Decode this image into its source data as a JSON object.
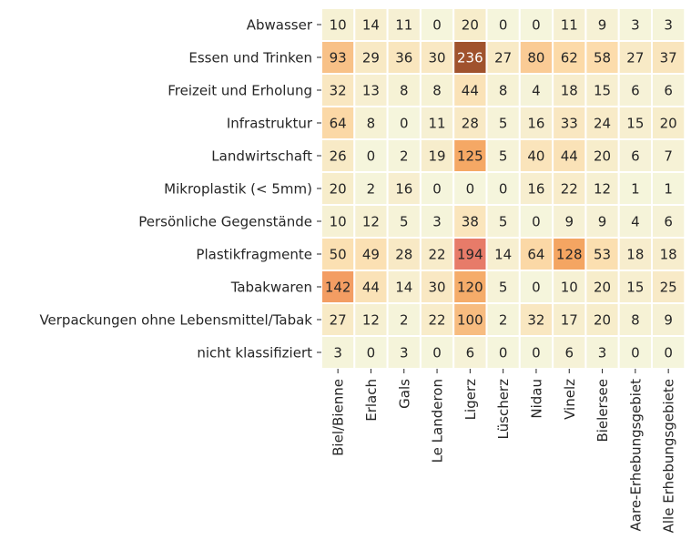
{
  "chart_data": {
    "type": "heatmap",
    "title": "",
    "xlabel": "",
    "ylabel": "",
    "rows": [
      "Abwasser",
      "Essen und Trinken",
      "Freizeit und Erholung",
      "Infrastruktur",
      "Landwirtschaft",
      "Mikroplastik (< 5mm)",
      "Persönliche Gegenstände",
      "Plastikfragmente",
      "Tabakwaren",
      "Verpackungen ohne Lebensmittel/Tabak",
      "nicht klassifiziert"
    ],
    "columns": [
      "Biel/Bienne",
      "Erlach",
      "Gals",
      "Le Landeron",
      "Ligerz",
      "Lüscherz",
      "Nidau",
      "Vinelz",
      "Bielersee",
      "Aare-Erhebungsgebiet",
      "Alle Erhebungsgebiete"
    ],
    "values": [
      [
        10,
        14,
        11,
        0,
        20,
        0,
        0,
        11,
        9,
        3,
        3
      ],
      [
        93,
        29,
        36,
        30,
        236,
        27,
        80,
        62,
        58,
        27,
        37
      ],
      [
        32,
        13,
        8,
        8,
        44,
        8,
        4,
        18,
        15,
        6,
        6
      ],
      [
        64,
        8,
        0,
        11,
        28,
        5,
        16,
        33,
        24,
        15,
        20
      ],
      [
        26,
        0,
        2,
        19,
        125,
        5,
        40,
        44,
        20,
        6,
        7
      ],
      [
        20,
        2,
        16,
        0,
        0,
        0,
        16,
        22,
        12,
        1,
        1
      ],
      [
        10,
        12,
        5,
        3,
        38,
        5,
        0,
        9,
        9,
        4,
        6
      ],
      [
        50,
        49,
        28,
        22,
        194,
        14,
        64,
        128,
        53,
        18,
        18
      ],
      [
        142,
        44,
        14,
        30,
        120,
        5,
        0,
        10,
        20,
        15,
        25
      ],
      [
        27,
        12,
        2,
        22,
        100,
        2,
        32,
        17,
        20,
        8,
        9
      ],
      [
        3,
        0,
        3,
        0,
        6,
        0,
        0,
        6,
        3,
        0,
        0
      ]
    ],
    "vmin": 0,
    "vmax": 236,
    "colorbar": false,
    "colors": {
      "low": "#f5f5dc",
      "mid": "#fcdcab",
      "high1": "#f4a460",
      "high2": "#f08070",
      "max": "#a0522d",
      "grid": "#ffffff",
      "text_dark": "#262626",
      "text_light": "#ffffff"
    }
  }
}
